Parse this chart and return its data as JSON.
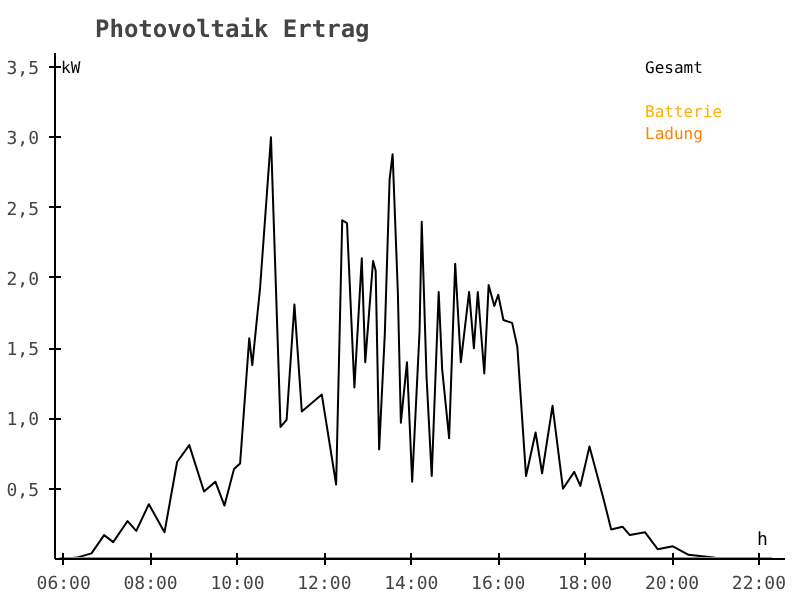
{
  "chart_data": {
    "type": "line",
    "title": "Photovoltaik Ertrag",
    "xlabel": "h",
    "ylabel": "kW",
    "xlim": [
      5.8,
      22.6
    ],
    "ylim": [
      0,
      3.6
    ],
    "xticks": [
      {
        "value": 6,
        "label": "06:00"
      },
      {
        "value": 8,
        "label": "08:00"
      },
      {
        "value": 10,
        "label": "10:00"
      },
      {
        "value": 12,
        "label": "12:00"
      },
      {
        "value": 14,
        "label": "14:00"
      },
      {
        "value": 16,
        "label": "16:00"
      },
      {
        "value": 18,
        "label": "18:00"
      },
      {
        "value": 20,
        "label": "20:00"
      },
      {
        "value": 22,
        "label": "22:00"
      }
    ],
    "yticks": [
      {
        "value": 0.5,
        "label": "0,5"
      },
      {
        "value": 1,
        "label": "1,0"
      },
      {
        "value": 1.5,
        "label": "1,5"
      },
      {
        "value": 2,
        "label": "2,0"
      },
      {
        "value": 2.5,
        "label": "2,5"
      },
      {
        "value": 3,
        "label": "3,0"
      },
      {
        "value": 3.5,
        "label": "3,5"
      }
    ],
    "grid": false,
    "legend": "top right",
    "marker": "none",
    "line_style": "solid",
    "series": [
      {
        "name": "Gesamt",
        "color": "#000000",
        "x": [
          6.0,
          6.3,
          6.64,
          6.93,
          7.14,
          7.47,
          7.67,
          7.96,
          8.32,
          8.61,
          8.89,
          9.23,
          9.49,
          9.7,
          9.92,
          10.06,
          10.27,
          10.34,
          10.52,
          10.77,
          10.99,
          11.13,
          11.31,
          11.48,
          11.94,
          12.27,
          12.41,
          12.52,
          12.69,
          12.86,
          12.94,
          13.12,
          13.18,
          13.26,
          13.39,
          13.5,
          13.57,
          13.69,
          13.76,
          13.9,
          14.02,
          14.19,
          14.24,
          14.35,
          14.47,
          14.63,
          14.71,
          14.87,
          15.01,
          15.14,
          15.33,
          15.44,
          15.53,
          15.68,
          15.78,
          15.91,
          16.0,
          16.12,
          16.32,
          16.44,
          16.64,
          16.86,
          17.01,
          17.25,
          17.49,
          17.75,
          17.89,
          18.1,
          18.43,
          18.6,
          18.86,
          19.03,
          19.38,
          19.67,
          20.02,
          20.38,
          20.95,
          21.16
        ],
        "values": [
          0,
          0.01,
          0.04,
          0.17,
          0.12,
          0.27,
          0.2,
          0.39,
          0.19,
          0.69,
          0.81,
          0.48,
          0.55,
          0.38,
          0.64,
          0.68,
          1.57,
          1.38,
          1.93,
          3.0,
          0.94,
          0.99,
          1.81,
          1.05,
          1.17,
          0.53,
          2.41,
          2.39,
          1.22,
          2.14,
          1.4,
          2.12,
          2.05,
          0.78,
          1.6,
          2.7,
          2.88,
          1.9,
          0.97,
          1.4,
          0.55,
          1.62,
          2.4,
          1.3,
          0.59,
          1.9,
          1.35,
          0.86,
          2.1,
          1.4,
          1.9,
          1.5,
          1.9,
          1.32,
          1.95,
          1.8,
          1.88,
          1.7,
          1.68,
          1.51,
          0.59,
          0.9,
          0.61,
          1.09,
          0.5,
          0.62,
          0.52,
          0.8,
          0.42,
          0.21,
          0.23,
          0.17,
          0.19,
          0.07,
          0.09,
          0.03,
          0.01,
          0
        ]
      },
      {
        "name": "Batterie",
        "color": "#ffb000"
      },
      {
        "name": "Ladung",
        "color": "#ff8000",
        "x": [
          5.9,
          22.3
        ],
        "values": [
          0,
          0
        ]
      }
    ]
  }
}
